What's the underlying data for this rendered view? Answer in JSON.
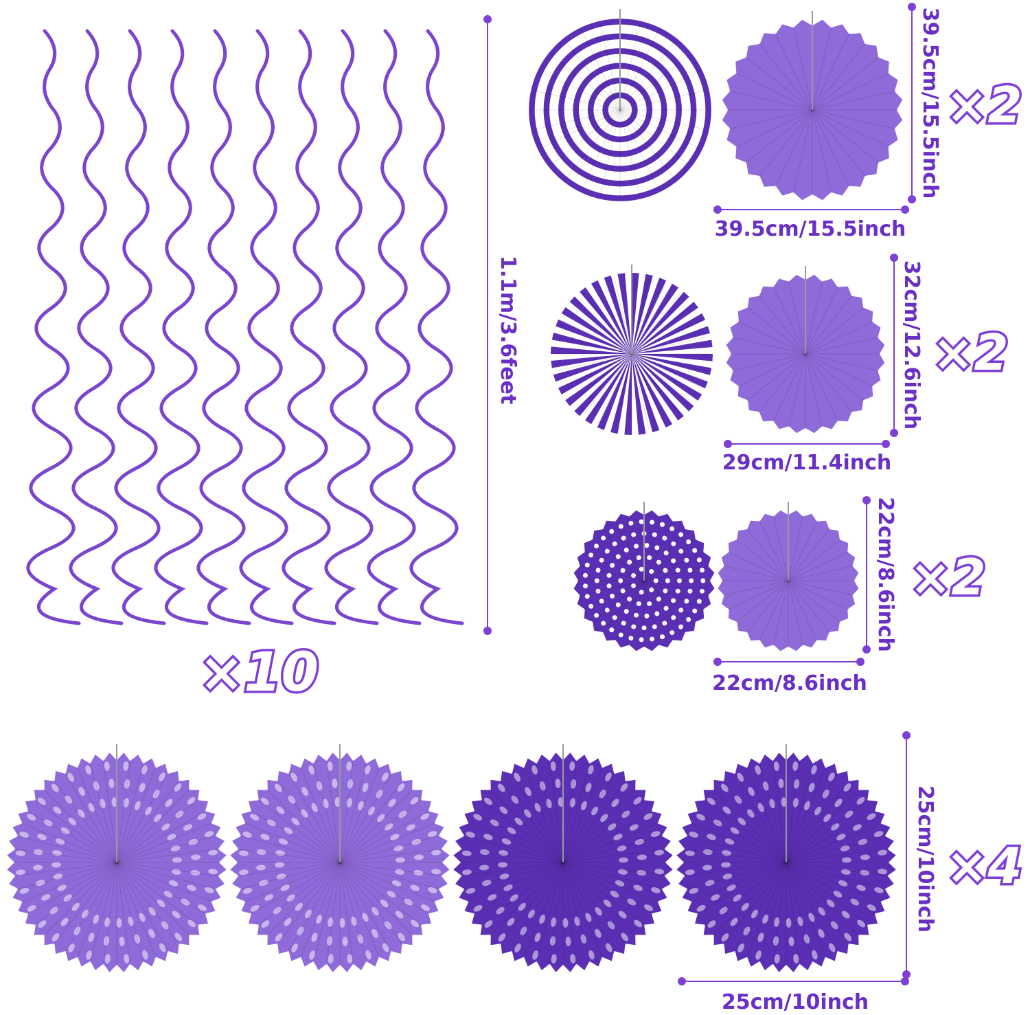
{
  "colors": {
    "accent": "#7d3fd6",
    "dimension_text": "#6a2fc4",
    "light_fan": "#8f6ad9",
    "dark_fan": "#5b2fb3",
    "swirl": "#7a45cf"
  },
  "swirls": {
    "count_label": "×10",
    "length_label": "1.1m/3.6feet",
    "quantity": 10
  },
  "fan_sets": [
    {
      "height_label": "39.5cm/15.5inch",
      "width_label": "39.5cm/15.5inch",
      "count_label": "×2",
      "patterns": [
        "stripes-concentric",
        "solid"
      ]
    },
    {
      "height_label": "32cm/12.6inch",
      "width_label": "29cm/11.4inch",
      "count_label": "×2",
      "patterns": [
        "stripes-radial",
        "solid"
      ]
    },
    {
      "height_label": "22cm/8.6inch",
      "width_label": "22cm/8.6inch",
      "count_label": "×2",
      "patterns": [
        "polka-dot",
        "solid"
      ]
    }
  ],
  "honeycomb_fans": {
    "height_label": "25cm/10inch",
    "width_label": "25cm/10inch",
    "count_label": "×4",
    "shades": [
      "light",
      "light",
      "dark",
      "dark"
    ]
  }
}
